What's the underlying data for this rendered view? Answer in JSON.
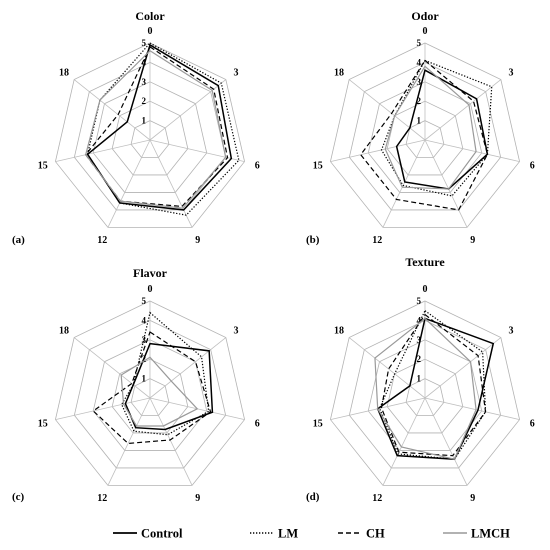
{
  "chart_data": [
    {
      "type": "radar",
      "title": "Color",
      "panel_label": "(a)",
      "categories": [
        "0",
        "3",
        "6",
        "9",
        "12",
        "15",
        "18"
      ],
      "radial_ticks": [
        "1",
        "2",
        "3",
        "4",
        "5"
      ],
      "rlim": [
        0,
        5
      ],
      "series": [
        {
          "name": "Control",
          "values": [
            4.9,
            4.5,
            4.3,
            4.0,
            3.6,
            3.3,
            1.5
          ]
        },
        {
          "name": "LM",
          "values": [
            5.0,
            4.7,
            4.7,
            4.3,
            3.6,
            3.3,
            3.3
          ]
        },
        {
          "name": "CH",
          "values": [
            4.8,
            4.2,
            4.1,
            3.8,
            3.5,
            3.4,
            2.1
          ]
        },
        {
          "name": "LMCH",
          "values": [
            4.6,
            4.1,
            4.0,
            3.9,
            3.5,
            3.4,
            3.3
          ]
        }
      ]
    },
    {
      "type": "radar",
      "title": "Odor",
      "panel_label": "(b)",
      "categories": [
        "0",
        "3",
        "6",
        "9",
        "12",
        "15",
        "18"
      ],
      "radial_ticks": [
        "1",
        "2",
        "3",
        "4",
        "5"
      ],
      "rlim": [
        0,
        5
      ],
      "series": [
        {
          "name": "Control",
          "values": [
            3.6,
            3.4,
            3.3,
            2.8,
            2.4,
            1.5,
            1.0
          ]
        },
        {
          "name": "LM",
          "values": [
            4.1,
            4.4,
            3.3,
            3.2,
            2.6,
            2.3,
            2.0
          ]
        },
        {
          "name": "CH",
          "values": [
            4.1,
            3.2,
            3.3,
            4.0,
            3.4,
            3.4,
            2.2
          ]
        },
        {
          "name": "LMCH",
          "values": [
            3.8,
            2.9,
            2.7,
            2.8,
            2.7,
            2.1,
            2.0
          ]
        }
      ]
    },
    {
      "type": "radar",
      "title": "Flavor",
      "panel_label": "(c)",
      "categories": [
        "0",
        "3",
        "6",
        "9",
        "12",
        "15",
        "18"
      ],
      "radial_ticks": [
        "1",
        "2",
        "3",
        "4",
        "5"
      ],
      "rlim": [
        0,
        5
      ],
      "series": [
        {
          "name": "Control",
          "values": [
            2.8,
            3.9,
            3.3,
            1.8,
            1.7,
            1.3,
            1.1
          ]
        },
        {
          "name": "LM",
          "values": [
            4.4,
            3.4,
            3.1,
            2.1,
            1.9,
            1.5,
            1.1
          ]
        },
        {
          "name": "CH",
          "values": [
            3.4,
            3.0,
            3.2,
            2.4,
            2.6,
            3.0,
            1.2
          ]
        },
        {
          "name": "LMCH",
          "values": [
            2.1,
            1.4,
            2.5,
            1.6,
            1.6,
            1.4,
            1.9
          ]
        }
      ]
    },
    {
      "type": "radar",
      "title": "Texture",
      "panel_label": "(d)",
      "categories": [
        "0",
        "3",
        "6",
        "9",
        "12",
        "15",
        "18"
      ],
      "radial_ticks": [
        "1",
        "2",
        "3",
        "4",
        "5"
      ],
      "rlim": [
        0,
        5
      ],
      "series": [
        {
          "name": "Control",
          "values": [
            4.1,
            4.5,
            2.8,
            3.5,
            3.3,
            2.5,
            1.0
          ]
        },
        {
          "name": "LM",
          "values": [
            4.5,
            3.8,
            3.2,
            3.5,
            3.2,
            2.4,
            2.0
          ]
        },
        {
          "name": "CH",
          "values": [
            4.3,
            3.5,
            3.2,
            3.3,
            3.1,
            2.3,
            2.4
          ]
        },
        {
          "name": "LMCH",
          "values": [
            4.1,
            3.0,
            2.7,
            3.5,
            2.8,
            2.5,
            3.3
          ]
        }
      ]
    }
  ],
  "legend": [
    {
      "name": "Control",
      "dash": "solid",
      "color": "#000000"
    },
    {
      "name": "LM",
      "dash": "dotted",
      "color": "#000000"
    },
    {
      "name": "CH",
      "dash": "dashed",
      "color": "#000000"
    },
    {
      "name": "LMCH",
      "dash": "solid",
      "color": "#999999"
    }
  ],
  "colors": {
    "grid": "#b3b3b3",
    "spoke": "#bfbfbf",
    "text": "#000000"
  }
}
